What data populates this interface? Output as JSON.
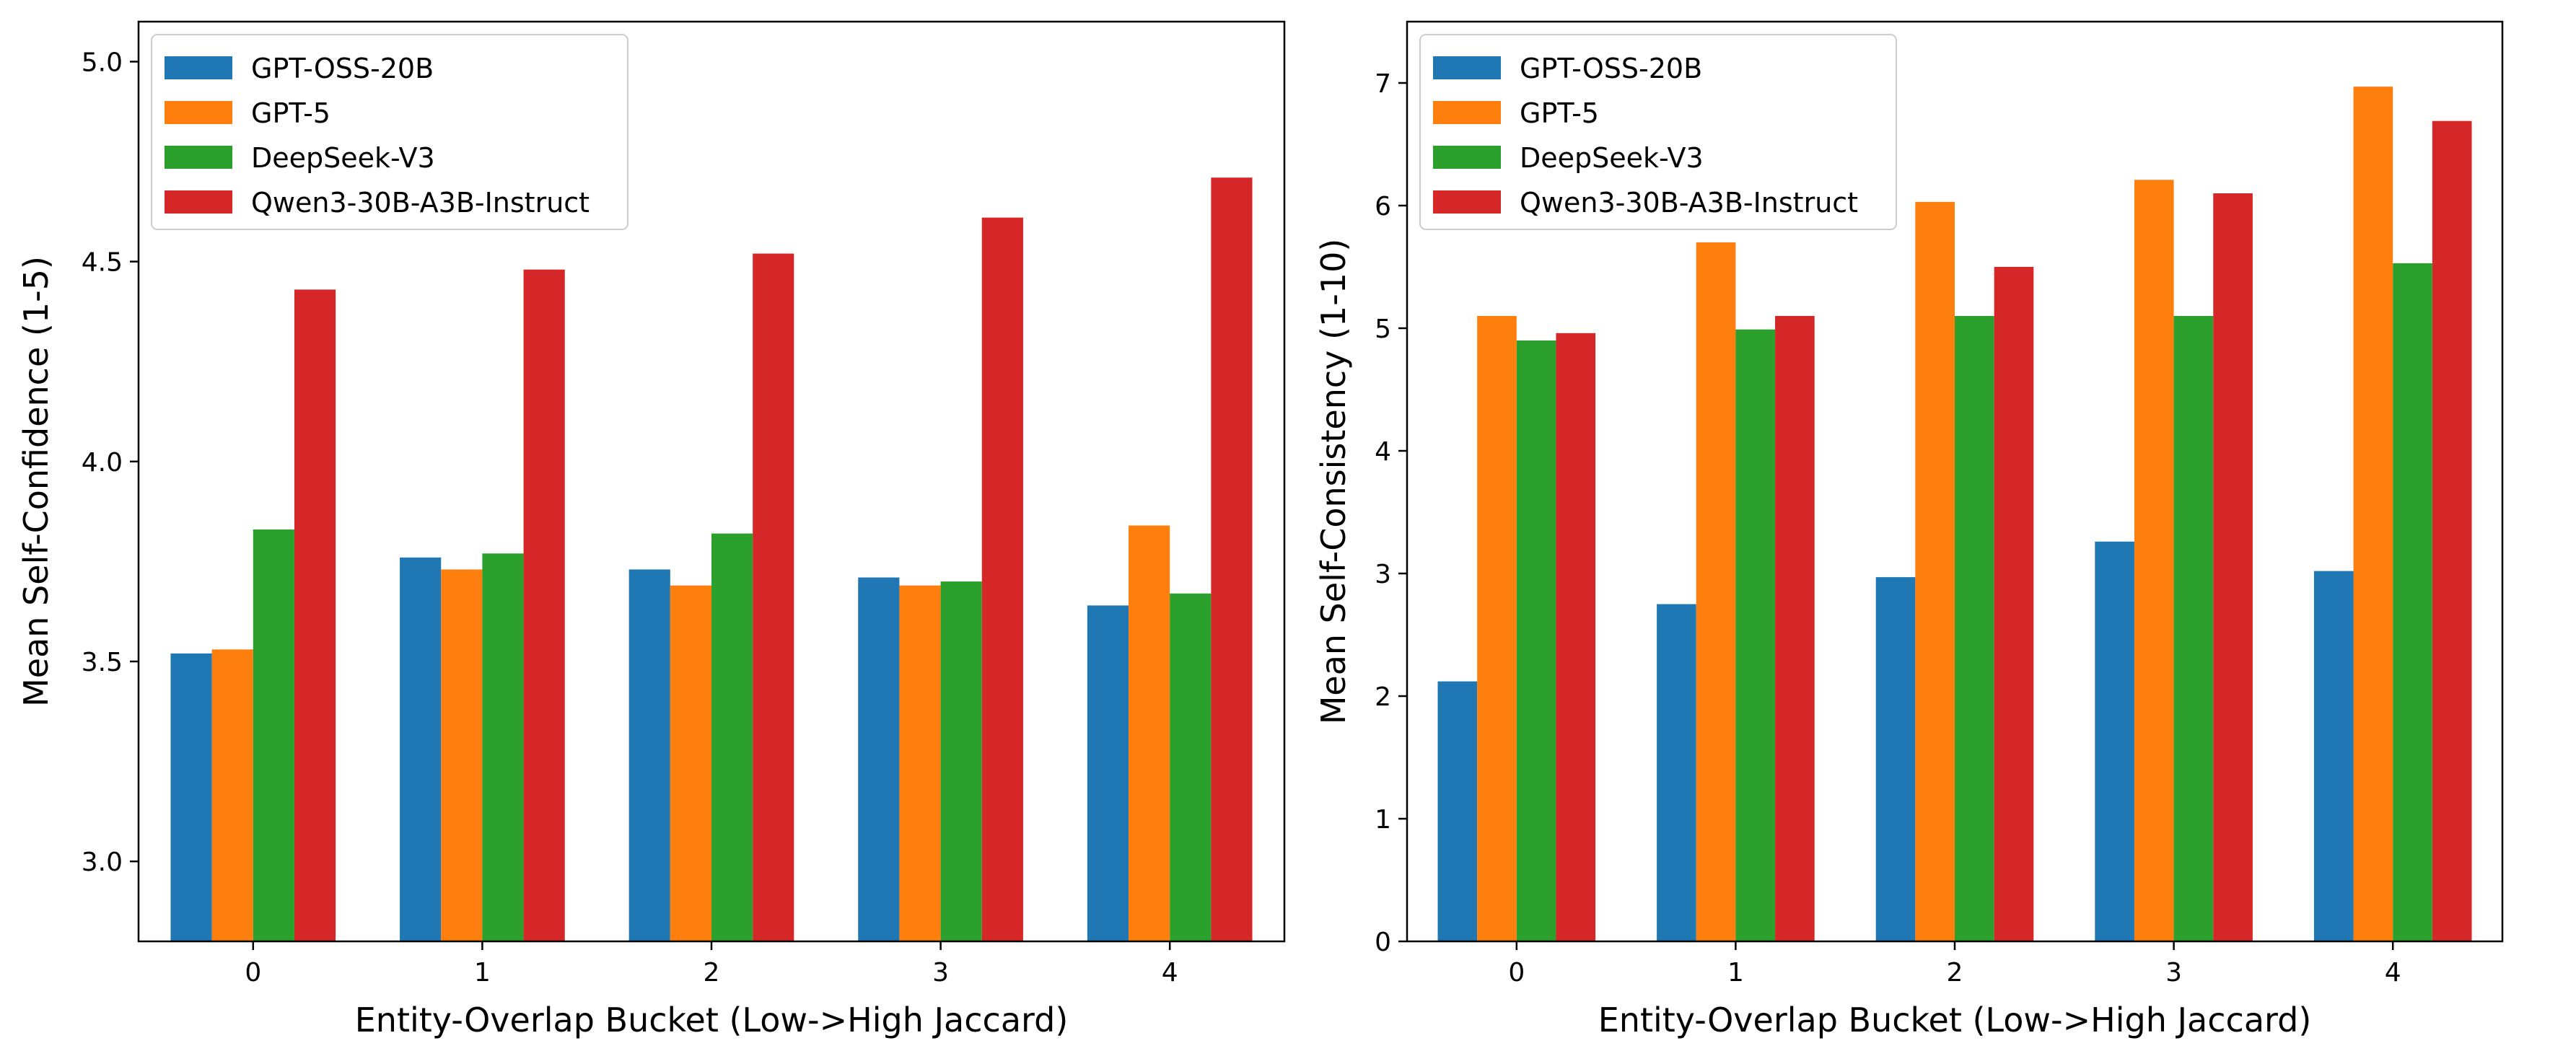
{
  "colors": {
    "GPT-OSS-20B": "#1f77b4",
    "GPT-5": "#ff7f0e",
    "DeepSeek-V3": "#2ca02c",
    "Qwen3-30B-A3B-Instruct": "#d62728"
  },
  "chart_data": [
    {
      "type": "bar",
      "title": "",
      "xlabel": "Entity-Overlap Bucket (Low->High Jaccard)",
      "ylabel": "Mean Self-Confidence (1-5)",
      "categories": [
        "0",
        "1",
        "2",
        "3",
        "4"
      ],
      "ylim": [
        2.8,
        5.1
      ],
      "yticks": [
        "3.0",
        "3.5",
        "4.0",
        "4.5",
        "5.0"
      ],
      "legend": "top-left",
      "grid": false,
      "series": [
        {
          "name": "GPT-OSS-20B",
          "values": [
            3.52,
            3.76,
            3.73,
            3.71,
            3.64
          ]
        },
        {
          "name": "GPT-5",
          "values": [
            3.53,
            3.73,
            3.69,
            3.69,
            3.84
          ]
        },
        {
          "name": "DeepSeek-V3",
          "values": [
            3.83,
            3.77,
            3.82,
            3.7,
            3.67
          ]
        },
        {
          "name": "Qwen3-30B-A3B-Instruct",
          "values": [
            4.43,
            4.48,
            4.52,
            4.61,
            4.71
          ]
        }
      ]
    },
    {
      "type": "bar",
      "title": "",
      "xlabel": "Entity-Overlap Bucket (Low->High Jaccard)",
      "ylabel": "Mean Self-Consistency (1-10)",
      "categories": [
        "0",
        "1",
        "2",
        "3",
        "4"
      ],
      "ylim": [
        0,
        7.5
      ],
      "yticks": [
        "0",
        "1",
        "2",
        "3",
        "4",
        "5",
        "6",
        "7"
      ],
      "legend": "top-left",
      "grid": false,
      "series": [
        {
          "name": "GPT-OSS-20B",
          "values": [
            2.12,
            2.75,
            2.97,
            3.26,
            3.02
          ]
        },
        {
          "name": "GPT-5",
          "values": [
            5.1,
            5.7,
            6.03,
            6.21,
            6.97
          ]
        },
        {
          "name": "DeepSeek-V3",
          "values": [
            4.9,
            4.99,
            5.1,
            5.1,
            5.53
          ]
        },
        {
          "name": "Qwen3-30B-A3B-Instruct",
          "values": [
            4.96,
            5.1,
            5.5,
            6.1,
            6.69
          ]
        }
      ]
    }
  ]
}
